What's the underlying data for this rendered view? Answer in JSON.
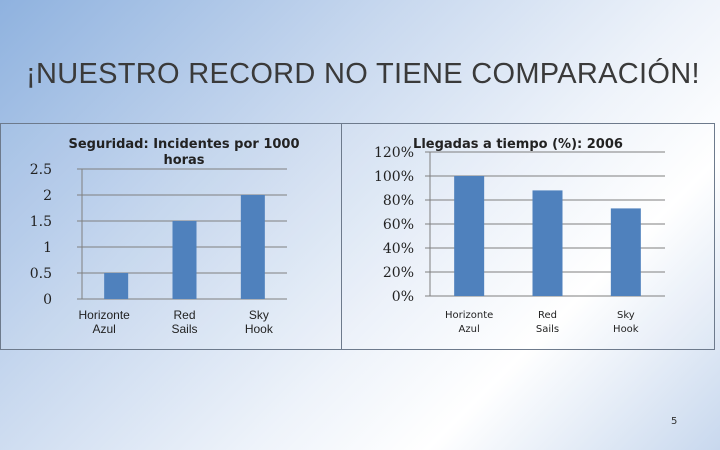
{
  "slide": {
    "title": "¡NUESTRO RECORD NO TIENE COMPARACIÓN!",
    "page_number": "5"
  },
  "chart_data": [
    {
      "type": "bar",
      "title_lines": [
        "Seguridad: Incidentes por 1000",
        "horas"
      ],
      "categories": [
        "Horizonte Azul",
        "Red Sails",
        "Sky Hook"
      ],
      "category_lines": [
        [
          "Horizonte",
          "Azul"
        ],
        [
          "Red",
          "Sails"
        ],
        [
          "Sky",
          "Hook"
        ]
      ],
      "values": [
        0.5,
        1.5,
        2
      ],
      "ylim": [
        0,
        2.5
      ],
      "yticks": [
        "0",
        "0.5",
        "1",
        "1.5",
        "2",
        "2.5"
      ],
      "bar_color": "#4f81bd",
      "grid": true
    },
    {
      "type": "bar",
      "title_lines": [
        "Llegadas a tiempo (%): 2006"
      ],
      "categories": [
        "Horizonte Azul",
        "Red Sails",
        "Sky Hook"
      ],
      "category_lines": [
        [
          "Horizonte",
          "Azul"
        ],
        [
          "Red",
          "Sails"
        ],
        [
          "Sky",
          "Hook"
        ]
      ],
      "values": [
        100,
        88,
        73
      ],
      "ylim": [
        0,
        120
      ],
      "yticks": [
        "0%",
        "20%",
        "40%",
        "60%",
        "80%",
        "100%",
        "120%"
      ],
      "bar_color": "#4f81bd",
      "grid": true
    }
  ]
}
